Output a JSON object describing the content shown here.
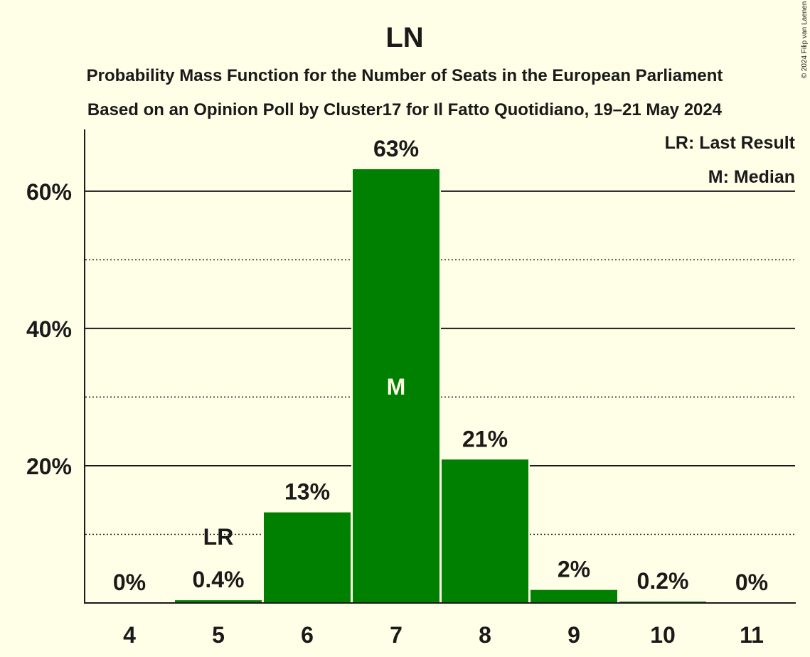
{
  "chart_data": {
    "type": "bar",
    "title": "LN",
    "subtitle_lines": [
      "Probability Mass Function for the Number of Seats in the European Parliament",
      "Based on an Opinion Poll by Cluster17 for Il Fatto Quotidiano, 19–21 May 2024"
    ],
    "categories": [
      "4",
      "5",
      "6",
      "7",
      "8",
      "9",
      "10",
      "11"
    ],
    "values": [
      0,
      0.4,
      13.2,
      63.2,
      20.9,
      1.9,
      0.2,
      0
    ],
    "value_labels": [
      "0%",
      "0.4%",
      "13%",
      "63%",
      "21%",
      "2%",
      "0.2%",
      "0%"
    ],
    "ylim": [
      0,
      69
    ],
    "y_ticks": [
      20,
      40,
      60
    ],
    "y_tick_labels": [
      "20%",
      "40%",
      "60%"
    ],
    "minor_gridlines": [
      10,
      30,
      50
    ],
    "last_result_category": "5",
    "median_category": "7",
    "last_result_marker": "LR",
    "median_marker": "M",
    "legend": [
      "LR: Last Result",
      "M: Median"
    ],
    "legend_position": "top-right",
    "bar_color": "#008000",
    "copyright": "© 2024 Filip van Laenen"
  }
}
